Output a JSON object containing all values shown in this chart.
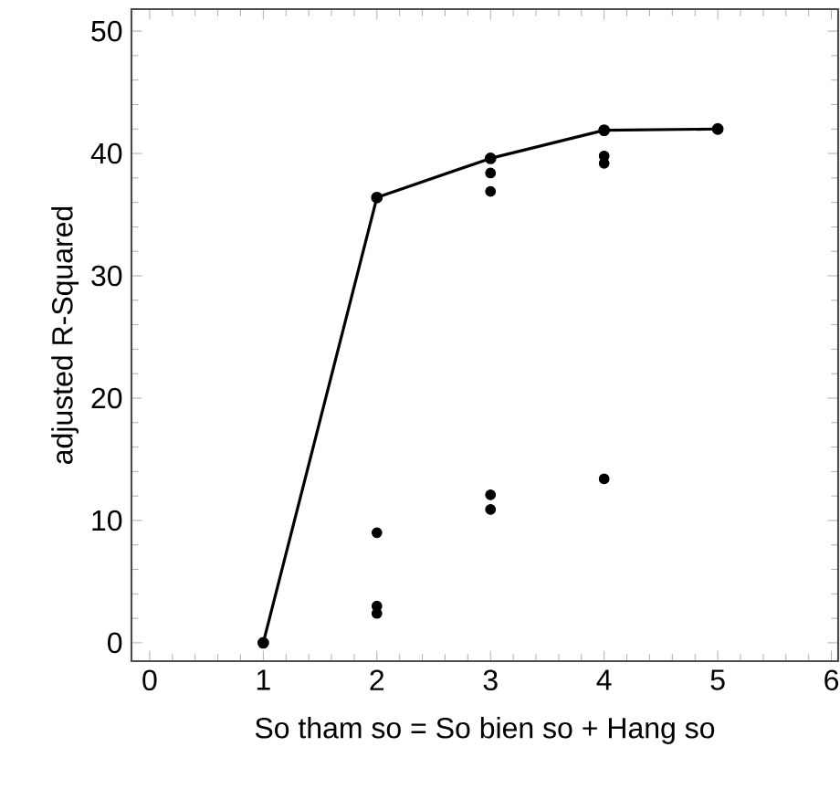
{
  "chart_data": {
    "type": "scatter",
    "xlabel": "So tham so = So bien so + Hang so",
    "ylabel": "adjusted R-Squared",
    "xlim": [
      -0.16,
      6.06
    ],
    "ylim": [
      -1.5,
      51.8
    ],
    "xticks": [
      0,
      1,
      2,
      3,
      4,
      5,
      6
    ],
    "yticks": [
      0,
      10,
      20,
      30,
      40,
      50
    ],
    "grid": false,
    "marker": "circle",
    "series": [
      {
        "type": "line",
        "color": "#000000",
        "x": [
          1,
          2,
          3,
          4,
          5
        ],
        "values": [
          0,
          36.4,
          39.6,
          41.9,
          42.0
        ]
      },
      {
        "color": "#000000",
        "x": [
          2,
          2,
          2,
          3,
          3,
          3,
          3,
          4,
          4,
          4
        ],
        "values": [
          9.0,
          3.0,
          2.4,
          38.4,
          36.9,
          12.1,
          10.9,
          39.8,
          39.2,
          13.4
        ]
      }
    ]
  }
}
